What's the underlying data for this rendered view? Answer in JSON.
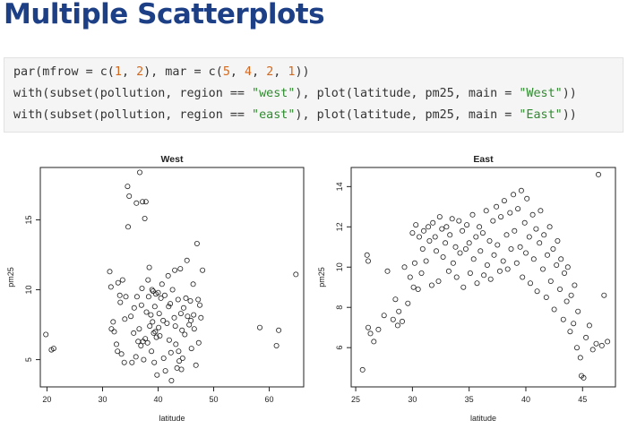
{
  "slide": {
    "title": "Multiple Scatterplots",
    "title_color": "#1d3f86"
  },
  "code": [
    [
      {
        "t": "par(mfrow = c("
      },
      {
        "t": "1",
        "k": "num"
      },
      {
        "t": ", "
      },
      {
        "t": "2",
        "k": "num"
      },
      {
        "t": "), mar = c("
      },
      {
        "t": "5",
        "k": "num"
      },
      {
        "t": ", "
      },
      {
        "t": "4",
        "k": "num"
      },
      {
        "t": ", "
      },
      {
        "t": "2",
        "k": "num"
      },
      {
        "t": ", "
      },
      {
        "t": "1",
        "k": "num"
      },
      {
        "t": "))"
      }
    ],
    [
      {
        "t": "with(subset(pollution, region == "
      },
      {
        "t": "\"west\"",
        "k": "str"
      },
      {
        "t": "), plot(latitude, pm25, main = "
      },
      {
        "t": "\"West\"",
        "k": "str"
      },
      {
        "t": "))"
      }
    ],
    [
      {
        "t": "with(subset(pollution, region == "
      },
      {
        "t": "\"east\"",
        "k": "str"
      },
      {
        "t": "), plot(latitude, pm25, main = "
      },
      {
        "t": "\"East\"",
        "k": "str"
      },
      {
        "t": "))"
      }
    ]
  ],
  "chart_data": [
    {
      "type": "scatter",
      "title": "West",
      "xlabel": "latitude",
      "ylabel": "pm25",
      "xlim": [
        18.8,
        66.2
      ],
      "ylim": [
        3.05,
        18.75
      ],
      "xticks": [
        20,
        30,
        40,
        50,
        60
      ],
      "yticks": [
        5,
        10,
        15
      ],
      "grid": false,
      "points": [
        [
          19.8,
          6.8
        ],
        [
          20.8,
          5.7
        ],
        [
          21.2,
          5.8
        ],
        [
          31.3,
          11.3
        ],
        [
          31.5,
          10.2
        ],
        [
          31.6,
          7.2
        ],
        [
          31.9,
          7.7
        ],
        [
          32.1,
          7.0
        ],
        [
          32.5,
          6.1
        ],
        [
          32.7,
          5.6
        ],
        [
          32.8,
          10.5
        ],
        [
          33.1,
          9.6
        ],
        [
          33.2,
          9.1
        ],
        [
          33.6,
          10.7
        ],
        [
          33.4,
          5.4
        ],
        [
          33.9,
          4.8
        ],
        [
          34.0,
          7.9
        ],
        [
          34.2,
          9.5
        ],
        [
          34.5,
          17.4
        ],
        [
          34.6,
          14.5
        ],
        [
          34.8,
          16.7
        ],
        [
          35.1,
          8.1
        ],
        [
          35.3,
          4.8
        ],
        [
          35.6,
          6.9
        ],
        [
          35.7,
          8.7
        ],
        [
          36.1,
          16.2
        ],
        [
          36.2,
          9.5
        ],
        [
          36.0,
          5.2
        ],
        [
          36.4,
          6.3
        ],
        [
          36.6,
          7.2
        ],
        [
          36.7,
          18.4
        ],
        [
          36.9,
          6.0
        ],
        [
          37.0,
          8.9
        ],
        [
          37.1,
          10.1
        ],
        [
          37.2,
          16.3
        ],
        [
          37.3,
          6.3
        ],
        [
          37.4,
          5.0
        ],
        [
          37.6,
          15.1
        ],
        [
          37.7,
          6.5
        ],
        [
          37.8,
          16.3
        ],
        [
          37.9,
          8.4
        ],
        [
          38.1,
          6.2
        ],
        [
          38.2,
          10.7
        ],
        [
          38.3,
          9.5
        ],
        [
          38.4,
          11.6
        ],
        [
          38.5,
          7.4
        ],
        [
          38.7,
          8.2
        ],
        [
          38.8,
          5.6
        ],
        [
          38.9,
          10.0
        ],
        [
          39.0,
          7.7
        ],
        [
          39.1,
          9.9
        ],
        [
          39.2,
          6.9
        ],
        [
          39.3,
          4.8
        ],
        [
          39.4,
          8.8
        ],
        [
          39.5,
          7.0
        ],
        [
          39.6,
          9.7
        ],
        [
          39.7,
          6.6
        ],
        [
          39.8,
          3.9
        ],
        [
          40.0,
          9.8
        ],
        [
          40.1,
          7.3
        ],
        [
          40.2,
          8.3
        ],
        [
          40.3,
          6.7
        ],
        [
          40.5,
          9.4
        ],
        [
          40.7,
          10.4
        ],
        [
          40.9,
          7.8
        ],
        [
          41.0,
          5.1
        ],
        [
          41.2,
          9.6
        ],
        [
          41.3,
          4.2
        ],
        [
          41.6,
          7.6
        ],
        [
          41.8,
          11.0
        ],
        [
          41.9,
          8.8
        ],
        [
          42.0,
          6.4
        ],
        [
          42.2,
          9.0
        ],
        [
          42.3,
          5.5
        ],
        [
          42.4,
          3.5
        ],
        [
          42.6,
          10.0
        ],
        [
          42.9,
          8.0
        ],
        [
          43.0,
          11.4
        ],
        [
          43.1,
          7.4
        ],
        [
          43.2,
          6.1
        ],
        [
          43.4,
          4.4
        ],
        [
          43.6,
          9.3
        ],
        [
          43.7,
          5.6
        ],
        [
          43.8,
          4.9
        ],
        [
          44.0,
          11.5
        ],
        [
          44.1,
          8.3
        ],
        [
          44.2,
          4.3
        ],
        [
          44.3,
          7.1
        ],
        [
          44.4,
          5.1
        ],
        [
          44.6,
          8.7
        ],
        [
          44.8,
          6.8
        ],
        [
          45.0,
          9.4
        ],
        [
          45.2,
          12.1
        ],
        [
          45.3,
          8.1
        ],
        [
          45.6,
          7.5
        ],
        [
          45.8,
          9.2
        ],
        [
          45.9,
          7.8
        ],
        [
          46.0,
          5.8
        ],
        [
          46.3,
          10.4
        ],
        [
          46.4,
          8.2
        ],
        [
          46.5,
          7.2
        ],
        [
          46.8,
          4.6
        ],
        [
          47.0,
          13.3
        ],
        [
          47.2,
          9.3
        ],
        [
          47.3,
          6.2
        ],
        [
          47.5,
          8.9
        ],
        [
          47.7,
          8.0
        ],
        [
          48.0,
          11.4
        ],
        [
          58.3,
          7.3
        ],
        [
          61.3,
          6.0
        ],
        [
          61.7,
          7.1
        ],
        [
          64.8,
          11.1
        ]
      ]
    },
    {
      "type": "scatter",
      "title": "East",
      "xlabel": "latitude",
      "ylabel": "pm25",
      "xlim": [
        24.6,
        47.9
      ],
      "ylim": [
        4.05,
        14.95
      ],
      "xticks": [
        25,
        30,
        35,
        40,
        45
      ],
      "yticks": [
        6,
        8,
        10,
        12,
        14
      ],
      "grid": false,
      "points": [
        [
          25.6,
          4.9
        ],
        [
          26.0,
          10.6
        ],
        [
          26.1,
          10.3
        ],
        [
          26.1,
          7.0
        ],
        [
          26.3,
          6.7
        ],
        [
          26.6,
          6.3
        ],
        [
          27.0,
          6.9
        ],
        [
          27.5,
          7.6
        ],
        [
          27.8,
          9.8
        ],
        [
          28.3,
          7.4
        ],
        [
          28.5,
          8.4
        ],
        [
          28.7,
          7.1
        ],
        [
          28.8,
          7.8
        ],
        [
          29.1,
          7.3
        ],
        [
          29.3,
          10.0
        ],
        [
          29.6,
          8.2
        ],
        [
          29.8,
          9.5
        ],
        [
          30.0,
          11.7
        ],
        [
          30.1,
          9.0
        ],
        [
          30.2,
          10.2
        ],
        [
          30.3,
          12.1
        ],
        [
          30.5,
          8.9
        ],
        [
          30.6,
          11.5
        ],
        [
          30.8,
          9.7
        ],
        [
          30.9,
          10.9
        ],
        [
          31.0,
          11.8
        ],
        [
          31.2,
          10.3
        ],
        [
          31.4,
          12.0
        ],
        [
          31.5,
          11.3
        ],
        [
          31.7,
          9.1
        ],
        [
          31.8,
          12.2
        ],
        [
          32.0,
          11.5
        ],
        [
          32.1,
          10.8
        ],
        [
          32.3,
          9.3
        ],
        [
          32.4,
          12.5
        ],
        [
          32.6,
          11.9
        ],
        [
          32.7,
          10.5
        ],
        [
          32.9,
          11.2
        ],
        [
          33.0,
          12.0
        ],
        [
          33.2,
          9.8
        ],
        [
          33.3,
          11.6
        ],
        [
          33.5,
          12.4
        ],
        [
          33.6,
          10.2
        ],
        [
          33.8,
          11.0
        ],
        [
          33.9,
          9.5
        ],
        [
          34.1,
          12.3
        ],
        [
          34.2,
          10.7
        ],
        [
          34.4,
          11.8
        ],
        [
          34.5,
          9.0
        ],
        [
          34.7,
          10.9
        ],
        [
          34.8,
          12.1
        ],
        [
          35.0,
          11.2
        ],
        [
          35.1,
          9.7
        ],
        [
          35.3,
          12.6
        ],
        [
          35.4,
          10.4
        ],
        [
          35.6,
          11.5
        ],
        [
          35.7,
          9.2
        ],
        [
          35.9,
          12.0
        ],
        [
          36.0,
          10.8
        ],
        [
          36.2,
          11.7
        ],
        [
          36.3,
          9.6
        ],
        [
          36.5,
          12.8
        ],
        [
          36.6,
          10.1
        ],
        [
          36.8,
          11.3
        ],
        [
          36.9,
          9.4
        ],
        [
          37.1,
          12.3
        ],
        [
          37.2,
          10.6
        ],
        [
          37.4,
          13.0
        ],
        [
          37.5,
          11.1
        ],
        [
          37.7,
          9.8
        ],
        [
          37.8,
          12.5
        ],
        [
          38.0,
          10.3
        ],
        [
          38.1,
          13.3
        ],
        [
          38.3,
          11.6
        ],
        [
          38.4,
          9.9
        ],
        [
          38.6,
          12.7
        ],
        [
          38.7,
          10.9
        ],
        [
          38.9,
          13.6
        ],
        [
          39.0,
          11.8
        ],
        [
          39.2,
          10.2
        ],
        [
          39.3,
          12.9
        ],
        [
          39.5,
          11.0
        ],
        [
          39.6,
          13.8
        ],
        [
          39.7,
          9.5
        ],
        [
          39.9,
          12.2
        ],
        [
          40.0,
          10.7
        ],
        [
          40.1,
          13.4
        ],
        [
          40.3,
          11.5
        ],
        [
          40.4,
          9.2
        ],
        [
          40.6,
          12.6
        ],
        [
          40.7,
          10.4
        ],
        [
          40.9,
          11.9
        ],
        [
          41.0,
          8.8
        ],
        [
          41.2,
          11.2
        ],
        [
          41.3,
          12.8
        ],
        [
          41.5,
          9.9
        ],
        [
          41.6,
          11.6
        ],
        [
          41.8,
          8.5
        ],
        [
          41.9,
          10.6
        ],
        [
          42.1,
          12.0
        ],
        [
          42.2,
          9.3
        ],
        [
          42.4,
          10.9
        ],
        [
          42.5,
          7.9
        ],
        [
          42.7,
          10.1
        ],
        [
          42.8,
          11.3
        ],
        [
          43.0,
          8.9
        ],
        [
          43.1,
          10.4
        ],
        [
          43.3,
          7.4
        ],
        [
          43.4,
          9.7
        ],
        [
          43.6,
          8.3
        ],
        [
          43.7,
          10.0
        ],
        [
          43.9,
          6.8
        ],
        [
          44.0,
          8.6
        ],
        [
          44.2,
          7.2
        ],
        [
          44.3,
          9.1
        ],
        [
          44.5,
          6.0
        ],
        [
          44.6,
          7.8
        ],
        [
          44.8,
          5.5
        ],
        [
          44.9,
          4.6
        ],
        [
          45.1,
          4.5
        ],
        [
          45.3,
          6.5
        ],
        [
          45.6,
          7.1
        ],
        [
          45.9,
          5.9
        ],
        [
          46.2,
          6.2
        ],
        [
          46.4,
          14.6
        ],
        [
          46.7,
          6.1
        ],
        [
          46.9,
          8.6
        ],
        [
          47.2,
          6.3
        ]
      ]
    }
  ]
}
